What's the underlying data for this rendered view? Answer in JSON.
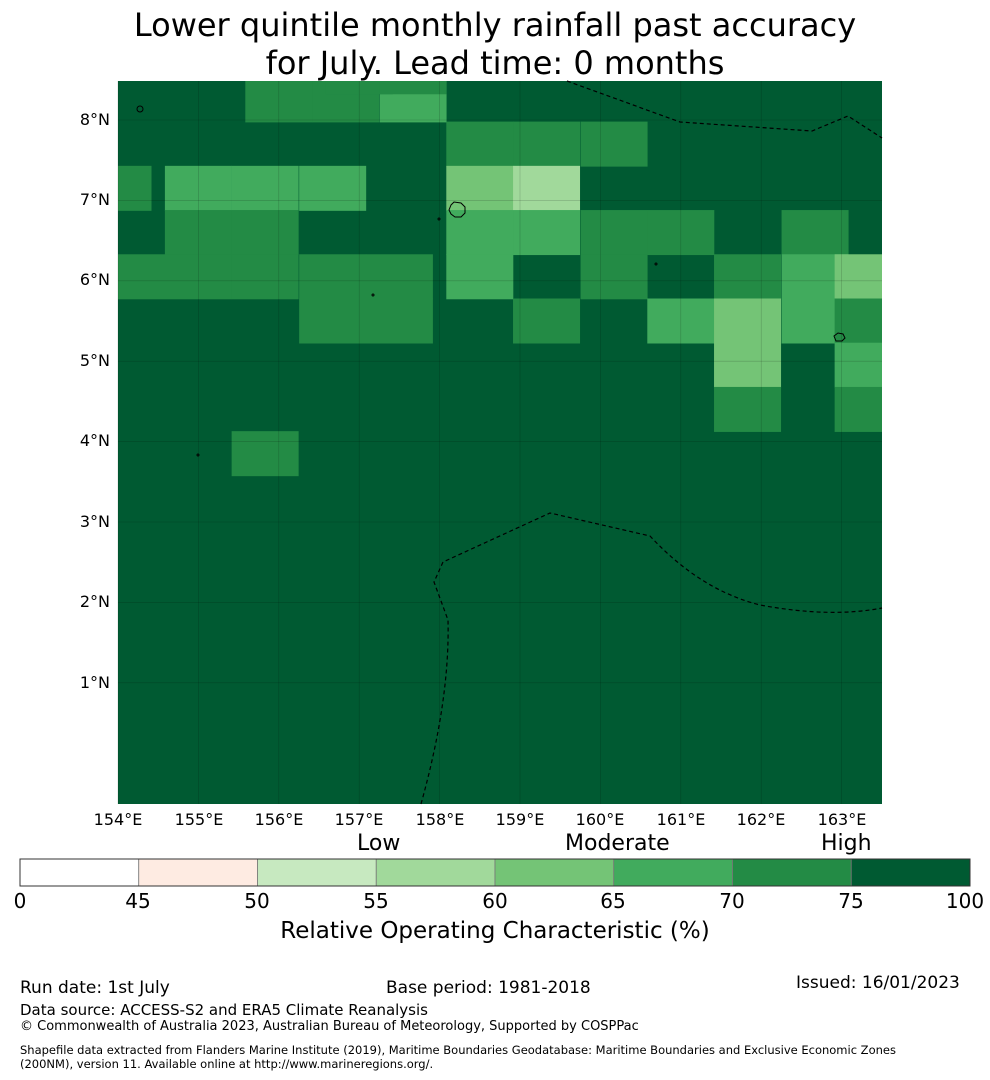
{
  "title": {
    "line1": "Lower quintile monthly rainfall past accuracy",
    "line2": "for July. Lead time: 0 months"
  },
  "map": {
    "lon_ticks": [
      "154°E",
      "155°E",
      "156°E",
      "157°E",
      "158°E",
      "159°E",
      "160°E",
      "161°E",
      "162°E",
      "163°E"
    ],
    "lat_ticks": [
      "8°N",
      "7°N",
      "6°N",
      "5°N",
      "4°N",
      "3°N",
      "2°N",
      "1°N"
    ],
    "lon_range": [
      154,
      163.5
    ],
    "lat_range": [
      -0.5,
      8.5
    ],
    "grid": true,
    "cells": [
      {
        "lon": 156.0,
        "lat": 8.25,
        "roc": 72
      },
      {
        "lon": 156.83,
        "lat": 8.25,
        "roc": 72
      },
      {
        "lon": 157.67,
        "lat": 8.25,
        "roc": 68
      },
      {
        "lon": 157.0,
        "lat": 8.6,
        "roc": 72
      },
      {
        "lon": 157.67,
        "lat": 8.6,
        "roc": 72
      },
      {
        "lon": 158.5,
        "lat": 7.7,
        "roc": 72
      },
      {
        "lon": 159.33,
        "lat": 7.7,
        "roc": 72
      },
      {
        "lon": 160.17,
        "lat": 7.7,
        "roc": 72
      },
      {
        "lon": 154.0,
        "lat": 7.15,
        "roc": 72
      },
      {
        "lon": 155.0,
        "lat": 7.15,
        "roc": 68
      },
      {
        "lon": 155.83,
        "lat": 7.15,
        "roc": 68
      },
      {
        "lon": 156.67,
        "lat": 7.15,
        "roc": 68
      },
      {
        "lon": 158.5,
        "lat": 7.15,
        "roc": 62
      },
      {
        "lon": 159.33,
        "lat": 7.15,
        "roc": 57
      },
      {
        "lon": 155.0,
        "lat": 6.6,
        "roc": 72
      },
      {
        "lon": 155.83,
        "lat": 6.6,
        "roc": 72
      },
      {
        "lon": 158.5,
        "lat": 6.6,
        "roc": 68
      },
      {
        "lon": 159.33,
        "lat": 6.6,
        "roc": 68
      },
      {
        "lon": 160.17,
        "lat": 6.6,
        "roc": 72
      },
      {
        "lon": 161.0,
        "lat": 6.6,
        "roc": 72
      },
      {
        "lon": 162.67,
        "lat": 6.6,
        "roc": 72
      },
      {
        "lon": 154.17,
        "lat": 6.05,
        "roc": 72
      },
      {
        "lon": 155.0,
        "lat": 6.05,
        "roc": 72
      },
      {
        "lon": 155.83,
        "lat": 6.05,
        "roc": 72
      },
      {
        "lon": 156.67,
        "lat": 6.05,
        "roc": 72
      },
      {
        "lon": 157.5,
        "lat": 6.05,
        "roc": 72
      },
      {
        "lon": 158.5,
        "lat": 6.05,
        "roc": 68
      },
      {
        "lon": 160.17,
        "lat": 6.05,
        "roc": 72
      },
      {
        "lon": 161.83,
        "lat": 6.05,
        "roc": 72
      },
      {
        "lon": 162.67,
        "lat": 6.05,
        "roc": 68
      },
      {
        "lon": 163.33,
        "lat": 6.05,
        "roc": 62
      },
      {
        "lon": 156.67,
        "lat": 5.5,
        "roc": 72
      },
      {
        "lon": 157.5,
        "lat": 5.5,
        "roc": 72
      },
      {
        "lon": 159.33,
        "lat": 5.5,
        "roc": 72
      },
      {
        "lon": 161.0,
        "lat": 5.5,
        "roc": 68
      },
      {
        "lon": 161.83,
        "lat": 5.5,
        "roc": 62
      },
      {
        "lon": 162.67,
        "lat": 5.5,
        "roc": 68
      },
      {
        "lon": 163.33,
        "lat": 5.5,
        "roc": 72
      },
      {
        "lon": 161.83,
        "lat": 4.95,
        "roc": 62
      },
      {
        "lon": 163.33,
        "lat": 4.95,
        "roc": 68
      },
      {
        "lon": 161.83,
        "lat": 4.4,
        "roc": 72
      },
      {
        "lon": 163.33,
        "lat": 4.4,
        "roc": 72
      },
      {
        "lon": 155.83,
        "lat": 3.85,
        "roc": 72
      }
    ],
    "background_roc": 80
  },
  "colorbar": {
    "categories": [
      "Low",
      "Moderate",
      "High"
    ],
    "ticks": [
      "0",
      "45",
      "50",
      "55",
      "60",
      "65",
      "70",
      "75",
      "100"
    ],
    "bins": [
      {
        "from": 0,
        "to": 45,
        "color": "#ffffff"
      },
      {
        "from": 45,
        "to": 50,
        "color": "#feebe2"
      },
      {
        "from": 50,
        "to": 55,
        "color": "#c7e9c0"
      },
      {
        "from": 55,
        "to": 60,
        "color": "#a1d99b"
      },
      {
        "from": 60,
        "to": 65,
        "color": "#74c476"
      },
      {
        "from": 65,
        "to": 70,
        "color": "#41ab5d"
      },
      {
        "from": 70,
        "to": 75,
        "color": "#238b45"
      },
      {
        "from": 75,
        "to": 100,
        "color": "#005a32"
      }
    ],
    "label": "Relative Operating Characteristic (%)"
  },
  "footer": {
    "run_date": "Run date: 1st July",
    "base_period": "Base period: 1981-2018",
    "issued": "Issued: 16/01/2023",
    "data_source": "Data source: ACCESS-S2 and ERA5 Climate Reanalysis",
    "copyright": "© Commonwealth of Australia 2023, Australian Bureau of Meteorology, Supported by COSPPac",
    "shapefile_line1": "Shapefile data extracted from Flanders Marine Institute (2019), Maritime Boundaries Geodatabase: Maritime Boundaries and Exclusive Economic Zones",
    "shapefile_line2": "(200NM), version 11. Available online at http://www.marineregions.org/."
  }
}
